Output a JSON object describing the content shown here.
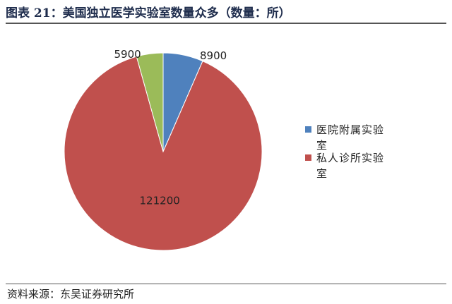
{
  "chart_data": {
    "type": "pie",
    "title": "图表 21：美国独立医学实验室数量众多（数量：所）",
    "categories": [
      "医院附属实验室",
      "私人诊所实验室",
      null
    ],
    "values": [
      8900,
      121200,
      5900
    ],
    "colors": [
      "#4f81bd",
      "#c0504d",
      "#9bbb59"
    ],
    "legend": "right",
    "source": "资料来源：东吴证券研究所"
  }
}
